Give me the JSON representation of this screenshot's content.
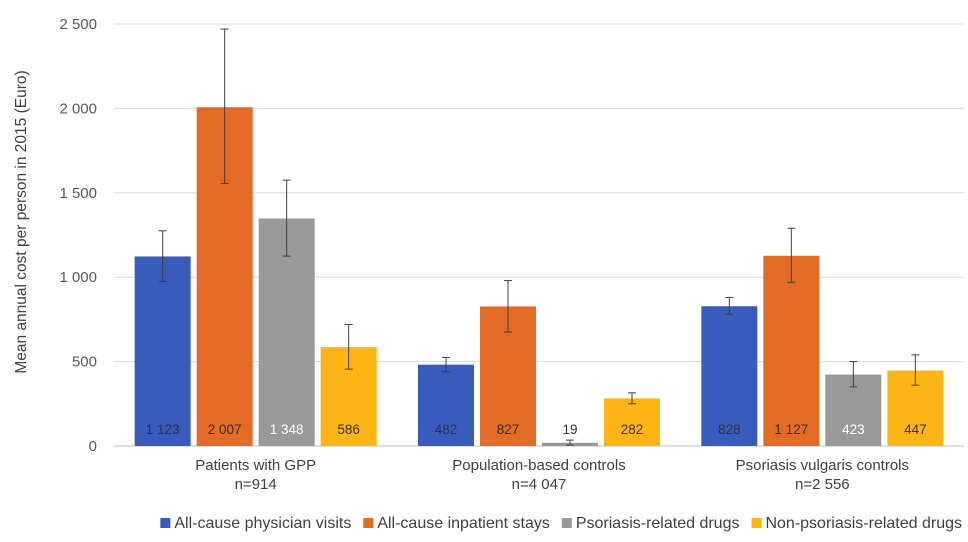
{
  "chart_data": {
    "type": "bar",
    "ylabel": "Mean annual cost per person in 2015 (Euro)",
    "ylim": [
      0,
      2500
    ],
    "yticks": [
      0,
      500,
      1000,
      1500,
      2000,
      2500
    ],
    "ytick_labels": [
      "0",
      "500",
      "1 000",
      "1 500",
      "2 000",
      "2 500"
    ],
    "grid": true,
    "legend_position": "bottom",
    "categories": [
      {
        "line1": "Patients with GPP",
        "line2": "n=914"
      },
      {
        "line1": "Population-based controls",
        "line2": "n=4 047"
      },
      {
        "line1": "Psoriasis vulgaris controls",
        "line2": "n=2 556"
      }
    ],
    "series": [
      {
        "name": "All-cause physician visits",
        "color": "#3A5BBE",
        "label_color": "#333333",
        "values": [
          1123,
          482,
          828
        ],
        "labels": [
          "1 123",
          "482",
          "828"
        ],
        "error_low": [
          975,
          440,
          780
        ],
        "error_high": [
          1275,
          525,
          880
        ]
      },
      {
        "name": "All-cause inpatient stays",
        "color": "#E46B26",
        "label_color": "#333333",
        "values": [
          2007,
          827,
          1127
        ],
        "labels": [
          "2 007",
          "827",
          "1 127"
        ],
        "error_low": [
          1555,
          675,
          970
        ],
        "error_high": [
          2470,
          980,
          1290
        ]
      },
      {
        "name": "Psoriasis-related drugs",
        "color": "#999999",
        "label_color": "#ffffff",
        "values": [
          1348,
          19,
          423
        ],
        "labels": [
          "1 348",
          "19",
          "423"
        ],
        "error_low": [
          1125,
          5,
          350
        ],
        "error_high": [
          1575,
          35,
          500
        ]
      },
      {
        "name": "Non-psoriasis-related drugs",
        "color": "#FDB515",
        "label_color": "#333333",
        "values": [
          586,
          282,
          447
        ],
        "labels": [
          "586",
          "282",
          "447"
        ],
        "error_low": [
          455,
          250,
          360
        ],
        "error_high": [
          720,
          315,
          540
        ]
      }
    ]
  }
}
